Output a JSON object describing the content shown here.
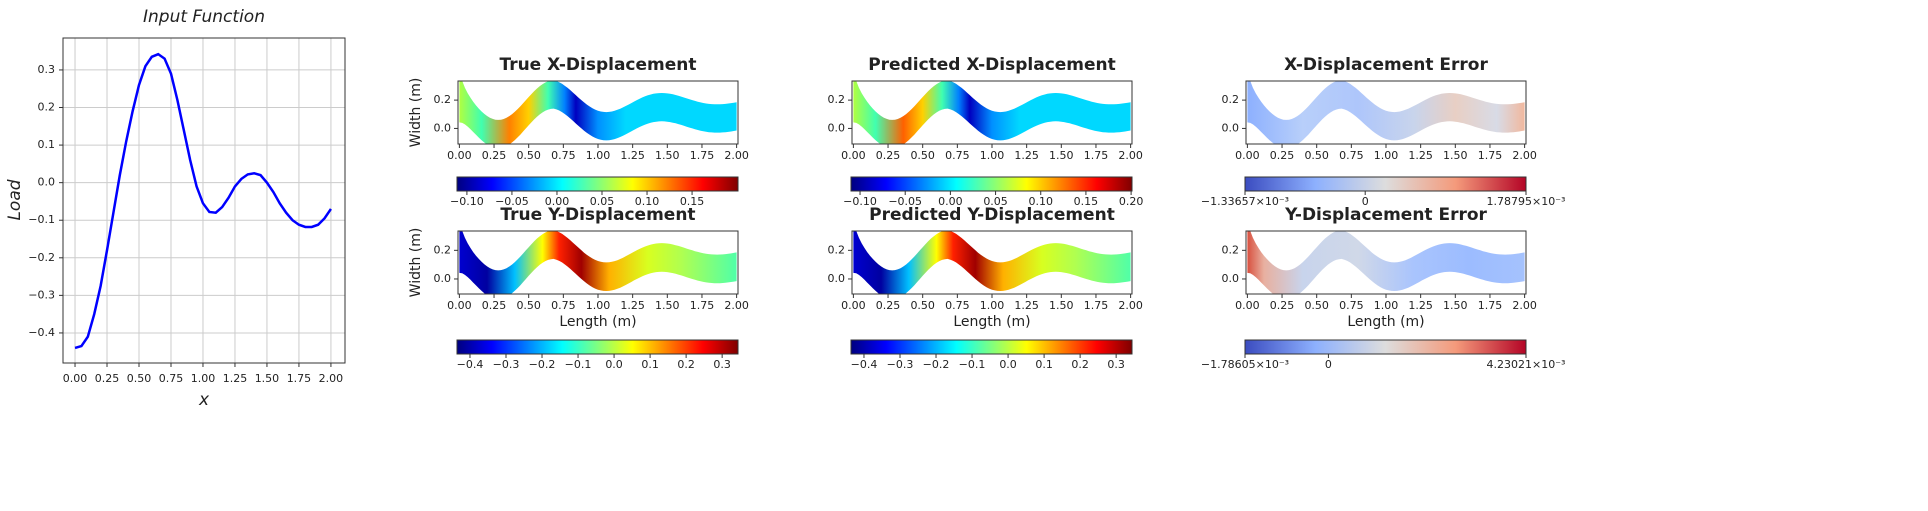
{
  "chart_data": [
    {
      "type": "line",
      "title": "Input Function",
      "xlabel": "x",
      "ylabel": "Load",
      "x": [
        0,
        0.05,
        0.1,
        0.15,
        0.2,
        0.25,
        0.3,
        0.35,
        0.4,
        0.45,
        0.5,
        0.55,
        0.6,
        0.65,
        0.7,
        0.75,
        0.8,
        0.85,
        0.9,
        0.95,
        1.0,
        1.05,
        1.1,
        1.15,
        1.2,
        1.25,
        1.3,
        1.35,
        1.4,
        1.45,
        1.5,
        1.55,
        1.6,
        1.65,
        1.7,
        1.75,
        1.8,
        1.85,
        1.9,
        1.95,
        2.0
      ],
      "values": [
        -0.44,
        -0.435,
        -0.41,
        -0.35,
        -0.275,
        -0.18,
        -0.08,
        0.02,
        0.11,
        0.19,
        0.26,
        0.31,
        0.335,
        0.342,
        0.33,
        0.29,
        0.22,
        0.14,
        0.06,
        -0.01,
        -0.055,
        -0.078,
        -0.08,
        -0.065,
        -0.04,
        -0.01,
        0.01,
        0.022,
        0.025,
        0.02,
        0.0,
        -0.025,
        -0.055,
        -0.08,
        -0.1,
        -0.112,
        -0.118,
        -0.118,
        -0.112,
        -0.095,
        -0.07
      ],
      "color": "#0000ff",
      "grid": true,
      "xlim": [
        -0.094,
        2.11
      ],
      "ylim": [
        -0.48,
        0.385
      ],
      "xticks": [
        {
          "value": 0,
          "label": "0.00"
        },
        {
          "value": 0.25,
          "label": "0.25"
        },
        {
          "value": 0.5,
          "label": "0.50"
        },
        {
          "value": 0.75,
          "label": "0.75"
        },
        {
          "value": 1,
          "label": "1.00"
        },
        {
          "value": 1.25,
          "label": "1.25"
        },
        {
          "value": 1.5,
          "label": "1.50"
        },
        {
          "value": 1.75,
          "label": "1.75"
        },
        {
          "value": 2,
          "label": "2.00"
        }
      ],
      "yticks": [
        {
          "value": -0.4,
          "label": "−0.4"
        },
        {
          "value": -0.3,
          "label": "−0.3"
        },
        {
          "value": -0.2,
          "label": "−0.2"
        },
        {
          "value": -0.1,
          "label": "−0.1"
        },
        {
          "value": 0,
          "label": "0.0"
        },
        0.1,
        0.2,
        0.3
      ]
    },
    {
      "type": "field",
      "title": "True X-Displacement",
      "ylabel": "Width (m)",
      "xlim": [
        -0.01,
        2.01
      ],
      "ylim": [
        -0.11,
        0.335
      ],
      "xticks": [
        {
          "value": 0,
          "label": "0.00"
        },
        {
          "value": 0.25,
          "label": "0.25"
        },
        {
          "value": 0.5,
          "label": "0.50"
        },
        {
          "value": 0.75,
          "label": "0.75"
        },
        {
          "value": 1,
          "label": "1.00"
        },
        {
          "value": 1.25,
          "label": "1.25"
        },
        {
          "value": 1.5,
          "label": "1.50"
        },
        {
          "value": 1.75,
          "label": "1.75"
        },
        {
          "value": 2,
          "label": "2.00"
        }
      ],
      "yticks": [
        {
          "value": 0,
          "label": "0.0"
        },
        0.2
      ],
      "colorbar": {
        "colormap": "jet",
        "lim": [
          -0.111,
          0.201
        ],
        "ticks": [
          {
            "value": -0.1,
            "label": "−0.10"
          },
          {
            "value": -0.05,
            "label": "−0.05"
          },
          {
            "value": 0,
            "label": "0.00"
          },
          {
            "value": 0.05,
            "label": "0.05"
          },
          {
            "value": 0.1,
            "label": "0.10"
          },
          {
            "value": 0.15,
            "label": "0.15"
          }
        ]
      }
    },
    {
      "type": "field",
      "title": "Predicted X-Displacement",
      "xlim": [
        -0.01,
        2.01
      ],
      "ylim": [
        -0.11,
        0.335
      ],
      "xticks": [
        {
          "value": 0,
          "label": "0.00"
        },
        {
          "value": 0.25,
          "label": "0.25"
        },
        {
          "value": 0.5,
          "label": "0.50"
        },
        {
          "value": 0.75,
          "label": "0.75"
        },
        {
          "value": 1,
          "label": "1.00"
        },
        {
          "value": 1.25,
          "label": "1.25"
        },
        {
          "value": 1.5,
          "label": "1.50"
        },
        {
          "value": 1.75,
          "label": "1.75"
        },
        {
          "value": 2,
          "label": "2.00"
        }
      ],
      "yticks": [
        {
          "value": 0,
          "label": "0.0"
        },
        0.2
      ],
      "colorbar": {
        "colormap": "jet",
        "lim": [
          -0.11,
          0.201
        ],
        "ticks": [
          {
            "value": -0.1,
            "label": "−0.10"
          },
          {
            "value": -0.05,
            "label": "−0.05"
          },
          {
            "value": 0,
            "label": "0.00"
          },
          {
            "value": 0.05,
            "label": "0.05"
          },
          {
            "value": 0.1,
            "label": "0.10"
          },
          {
            "value": 0.15,
            "label": "0.15"
          },
          {
            "value": 0.2,
            "label": "0.20"
          }
        ]
      }
    },
    {
      "type": "field",
      "title": "X-Displacement Error",
      "xlim": [
        -0.01,
        2.01
      ],
      "ylim": [
        -0.11,
        0.335
      ],
      "xticks": [
        {
          "value": 0,
          "label": "0.00"
        },
        {
          "value": 0.25,
          "label": "0.25"
        },
        {
          "value": 0.5,
          "label": "0.50"
        },
        {
          "value": 0.75,
          "label": "0.75"
        },
        {
          "value": 1,
          "label": "1.00"
        },
        {
          "value": 1.25,
          "label": "1.25"
        },
        {
          "value": 1.5,
          "label": "1.50"
        },
        {
          "value": 1.75,
          "label": "1.75"
        },
        {
          "value": 2,
          "label": "2.00"
        }
      ],
      "yticks": [
        {
          "value": 0,
          "label": "0.0"
        },
        0.2
      ],
      "colorbar": {
        "colormap": "coolwarm",
        "lim": [
          -0.00133657,
          0.00178795
        ],
        "ticks": [
          {
            "value": -0.00133657,
            "label": "−1.33657×10⁻³"
          },
          0,
          {
            "value": 0.00178795,
            "label": "1.78795×10⁻³"
          }
        ]
      }
    },
    {
      "type": "field",
      "title": "True Y-Displacement",
      "xlabel": "Length (m)",
      "ylabel": "Width (m)",
      "xlim": [
        -0.01,
        2.01
      ],
      "ylim": [
        -0.105,
        0.335
      ],
      "xticks": [
        {
          "value": 0,
          "label": "0.00"
        },
        {
          "value": 0.25,
          "label": "0.25"
        },
        {
          "value": 0.5,
          "label": "0.50"
        },
        {
          "value": 0.75,
          "label": "0.75"
        },
        {
          "value": 1,
          "label": "1.00"
        },
        {
          "value": 1.25,
          "label": "1.25"
        },
        {
          "value": 1.5,
          "label": "1.50"
        },
        {
          "value": 1.75,
          "label": "1.75"
        },
        {
          "value": 2,
          "label": "2.00"
        }
      ],
      "yticks": [
        {
          "value": 0,
          "label": "0.0"
        },
        0.2
      ],
      "colorbar": {
        "colormap": "jet",
        "lim": [
          -0.436,
          0.344
        ],
        "ticks": [
          {
            "value": -0.4,
            "label": "−0.4"
          },
          {
            "value": -0.3,
            "label": "−0.3"
          },
          {
            "value": -0.2,
            "label": "−0.2"
          },
          {
            "value": -0.1,
            "label": "−0.1"
          },
          {
            "value": 0,
            "label": "0.0"
          },
          0.1,
          0.2,
          0.3
        ]
      }
    },
    {
      "type": "field",
      "title": "Predicted Y-Displacement",
      "xlabel": "Length (m)",
      "xlim": [
        -0.01,
        2.01
      ],
      "ylim": [
        -0.105,
        0.335
      ],
      "xticks": [
        {
          "value": 0,
          "label": "0.00"
        },
        {
          "value": 0.25,
          "label": "0.25"
        },
        {
          "value": 0.5,
          "label": "0.50"
        },
        {
          "value": 0.75,
          "label": "0.75"
        },
        {
          "value": 1,
          "label": "1.00"
        },
        {
          "value": 1.25,
          "label": "1.25"
        },
        {
          "value": 1.5,
          "label": "1.50"
        },
        {
          "value": 1.75,
          "label": "1.75"
        },
        {
          "value": 2,
          "label": "2.00"
        }
      ],
      "yticks": [
        {
          "value": 0,
          "label": "0.0"
        },
        0.2
      ],
      "colorbar": {
        "colormap": "jet",
        "lim": [
          -0.436,
          0.344
        ],
        "ticks": [
          {
            "value": -0.4,
            "label": "−0.4"
          },
          {
            "value": -0.3,
            "label": "−0.3"
          },
          {
            "value": -0.2,
            "label": "−0.2"
          },
          {
            "value": -0.1,
            "label": "−0.1"
          },
          {
            "value": 0,
            "label": "0.0"
          },
          0.1,
          0.2,
          0.3
        ]
      }
    },
    {
      "type": "field",
      "title": "Y-Displacement Error",
      "xlabel": "Length (m)",
      "xlim": [
        -0.01,
        2.01
      ],
      "ylim": [
        -0.105,
        0.335
      ],
      "xticks": [
        {
          "value": 0,
          "label": "0.00"
        },
        {
          "value": 0.25,
          "label": "0.25"
        },
        {
          "value": 0.5,
          "label": "0.50"
        },
        {
          "value": 0.75,
          "label": "0.75"
        },
        {
          "value": 1,
          "label": "1.00"
        },
        {
          "value": 1.25,
          "label": "1.25"
        },
        {
          "value": 1.5,
          "label": "1.50"
        },
        {
          "value": 1.75,
          "label": "1.75"
        },
        {
          "value": 2,
          "label": "2.00"
        }
      ],
      "yticks": [
        {
          "value": 0,
          "label": "0.0"
        },
        0.2
      ],
      "colorbar": {
        "colormap": "coolwarm",
        "lim": [
          -0.00178605,
          0.00423021
        ],
        "ticks": [
          {
            "value": -0.00178605,
            "label": "−1.78605×10⁻³"
          },
          0,
          {
            "value": 0.00423021,
            "label": "4.23021×10⁻³"
          }
        ]
      }
    }
  ]
}
